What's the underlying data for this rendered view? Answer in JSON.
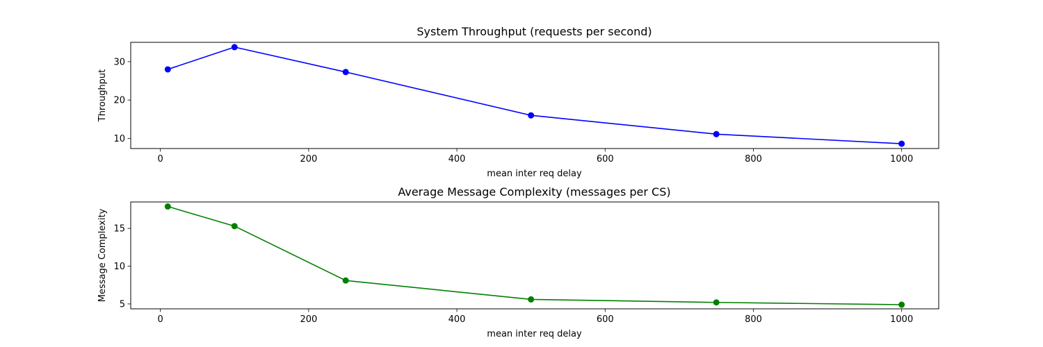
{
  "chart_data": [
    {
      "type": "line",
      "title": "System Throughput (requests per second)",
      "xlabel": "mean inter req delay",
      "ylabel": "Throughput",
      "x": [
        10,
        100,
        250,
        500,
        750,
        1000
      ],
      "series": [
        {
          "values": [
            28.0,
            33.8,
            27.3,
            16.0,
            11.1,
            8.6
          ],
          "color": "#0000ff",
          "marker": "circle"
        }
      ],
      "xlim": [
        -40,
        1050
      ],
      "ylim": [
        7.35,
        35.05
      ],
      "xticks": [
        0,
        200,
        400,
        600,
        800,
        1000
      ],
      "yticks": [
        10,
        20,
        30
      ],
      "grid": false
    },
    {
      "type": "line",
      "title": "Average Message Complexity (messages per CS)",
      "xlabel": "mean inter req delay",
      "ylabel": "Message Complexity",
      "x": [
        10,
        100,
        250,
        500,
        750,
        1000
      ],
      "series": [
        {
          "values": [
            17.9,
            15.3,
            8.1,
            5.6,
            5.2,
            4.9
          ],
          "color": "#008000",
          "marker": "circle"
        }
      ],
      "xlim": [
        -40,
        1050
      ],
      "ylim": [
        4.35,
        18.5
      ],
      "xticks": [
        0,
        200,
        400,
        600,
        800,
        1000
      ],
      "yticks": [
        5,
        10,
        15
      ],
      "grid": false
    }
  ]
}
